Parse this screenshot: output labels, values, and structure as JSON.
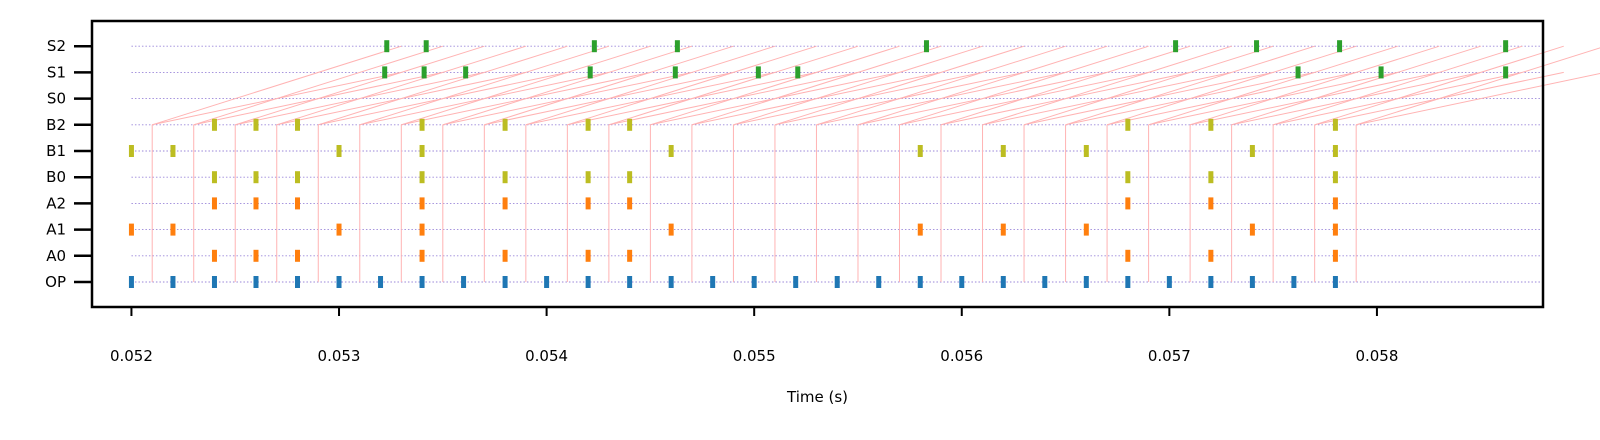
{
  "chart_data": {
    "type": "scatter",
    "xlabel": "Time (s)",
    "ylabel": "",
    "xlim": [
      0.05181,
      0.0588
    ],
    "x_ticks": [
      "0.052",
      "0.053",
      "0.054",
      "0.055",
      "0.056",
      "0.057",
      "0.058"
    ],
    "x_tick_values": [
      0.052,
      0.053,
      0.054,
      0.055,
      0.056,
      0.057,
      0.058
    ],
    "y_categories": [
      "OP",
      "A0",
      "A1",
      "A2",
      "B0",
      "B1",
      "B2",
      "S0",
      "S1",
      "S2"
    ],
    "grid": "dotted horizontal lines at each category",
    "colors": {
      "OP": "#1f77b4",
      "A": "#ff7f0e",
      "B": "#bcbd22",
      "S": "#2ca02c",
      "links": "#ffb3b3",
      "grid": "#9a86d9"
    },
    "series": [
      {
        "row": "OP",
        "x": [
          0.052,
          0.0522,
          0.0524,
          0.0526,
          0.0528,
          0.053,
          0.0532,
          0.0534,
          0.0536,
          0.0538,
          0.054,
          0.0542,
          0.0544,
          0.0546,
          0.0548,
          0.055,
          0.0552,
          0.0554,
          0.0556,
          0.0558,
          0.056,
          0.0562,
          0.0564,
          0.0566,
          0.0568,
          0.057,
          0.0572,
          0.0574,
          0.0576,
          0.0578
        ]
      },
      {
        "row": "A0",
        "x": [
          0.0524,
          0.0526,
          0.0528,
          0.0534,
          0.0538,
          0.0542,
          0.0544,
          0.0568,
          0.0572,
          0.0578
        ]
      },
      {
        "row": "A1",
        "x": [
          0.052,
          0.0522,
          0.053,
          0.0534,
          0.0546,
          0.0558,
          0.0562,
          0.0566,
          0.0574,
          0.0578
        ]
      },
      {
        "row": "A2",
        "x": [
          0.0524,
          0.0526,
          0.0528,
          0.0534,
          0.0538,
          0.0542,
          0.0544,
          0.0568,
          0.0572,
          0.0578
        ]
      },
      {
        "row": "B0",
        "x": [
          0.0524,
          0.0526,
          0.0528,
          0.0534,
          0.0538,
          0.0542,
          0.0544,
          0.0568,
          0.0572,
          0.0578
        ]
      },
      {
        "row": "B1",
        "x": [
          0.052,
          0.0522,
          0.053,
          0.0534,
          0.0546,
          0.0558,
          0.0562,
          0.0566,
          0.0574,
          0.0578
        ]
      },
      {
        "row": "B2",
        "x": [
          0.0524,
          0.0526,
          0.0528,
          0.0534,
          0.0538,
          0.0542,
          0.0544,
          0.0568,
          0.0572,
          0.0578
        ]
      },
      {
        "row": "S0",
        "x": []
      },
      {
        "row": "S1",
        "x": [
          0.05322,
          0.05341,
          0.05361,
          0.05421,
          0.05462,
          0.05502,
          0.05521,
          0.05762,
          0.05802,
          0.05862
        ]
      },
      {
        "row": "S2",
        "x": [
          0.05323,
          0.05342,
          0.05423,
          0.05463,
          0.05583,
          0.05703,
          0.05742,
          0.05782,
          0.05862
        ]
      }
    ],
    "links": {
      "vertical_from_OP_to_B2": [
        0.0521,
        0.0523,
        0.0525,
        0.0527,
        0.0529,
        0.0531,
        0.0533,
        0.0535,
        0.0537,
        0.0539,
        0.0541,
        0.0543,
        0.0545,
        0.0547,
        0.0549,
        0.0551,
        0.0553,
        0.0555,
        0.0557,
        0.0559,
        0.0561,
        0.0563,
        0.0565,
        0.0567,
        0.0569,
        0.0571,
        0.0573,
        0.0575,
        0.0577,
        0.0579
      ],
      "diagonal_shift_s": 0.0012,
      "diagonal_target_rows": [
        "S1",
        "S2"
      ]
    }
  }
}
